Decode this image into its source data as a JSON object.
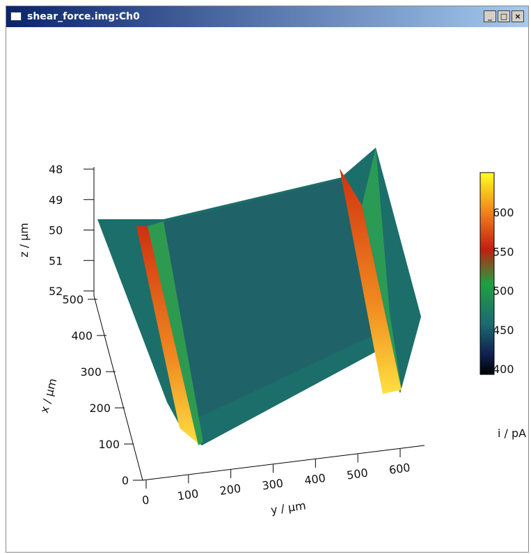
{
  "window": {
    "title": "shear_force.img:Ch0"
  },
  "plot": {
    "z_axis": {
      "label": "z / µm",
      "ticks": [
        "48",
        "49",
        "50",
        "51",
        "52"
      ]
    },
    "x_axis": {
      "label": "x / µm",
      "ticks": [
        "500",
        "400",
        "300",
        "200",
        "100",
        "0"
      ]
    },
    "y_axis": {
      "label": "y / µm",
      "ticks": [
        "0",
        "100",
        "200",
        "300",
        "400",
        "500",
        "600"
      ]
    },
    "colorbar": {
      "label": "i / pA",
      "ticks": [
        "600",
        "550",
        "500",
        "450",
        "400"
      ]
    }
  }
}
